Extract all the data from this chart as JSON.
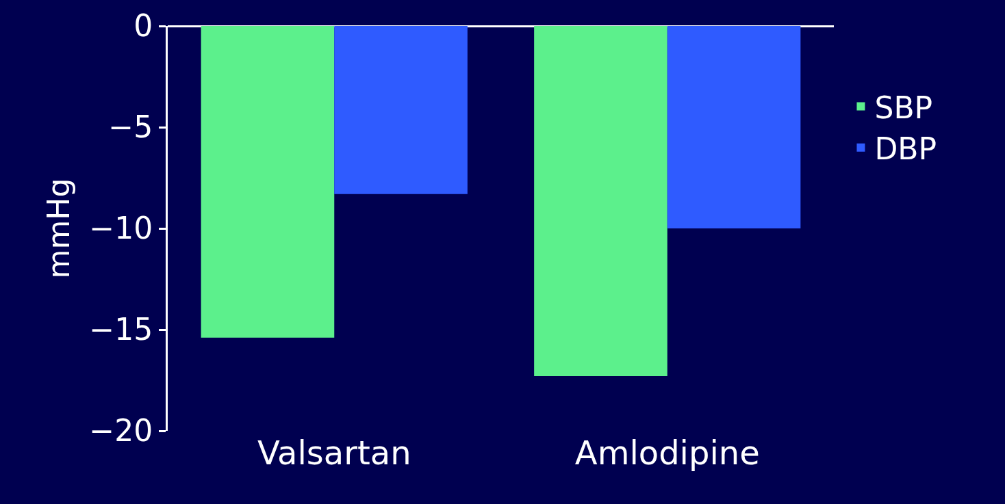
{
  "chart_data": {
    "type": "bar",
    "ylabel": "mmHg",
    "categories": [
      "Valsartan",
      "Amlodipine"
    ],
    "series": [
      {
        "name": "SBP",
        "color": "#5cf08c",
        "values": [
          -15.4,
          -17.3
        ]
      },
      {
        "name": "DBP",
        "color": "#2f5bff",
        "values": [
          -8.3,
          -10.0
        ]
      }
    ],
    "ylim": [
      -20,
      0
    ],
    "yticks": [
      {
        "value": 0,
        "label": "0"
      },
      {
        "value": -5,
        "label": "−5"
      },
      {
        "value": -10,
        "label": "−10"
      },
      {
        "value": -15,
        "label": "−15"
      },
      {
        "value": -20,
        "label": "−20"
      }
    ],
    "grid": false,
    "legend": "right"
  }
}
